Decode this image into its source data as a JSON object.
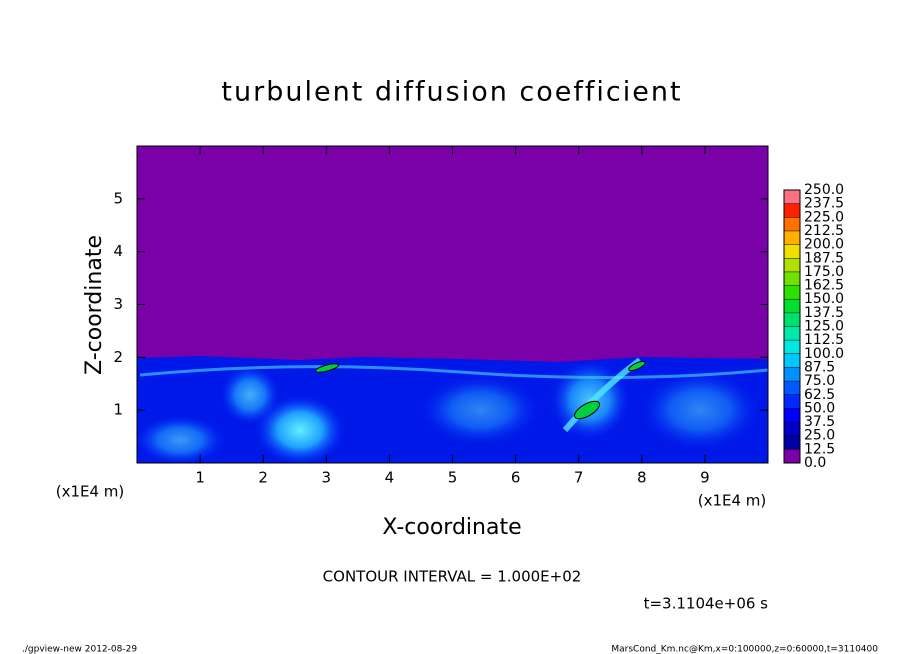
{
  "chart_data": {
    "type": "contour",
    "title": "turbulent diffusion coefficient",
    "x_label": "X-coordinate",
    "y_label": "Z-coordinate",
    "x_unit_label": "(x1E4 m)",
    "y_unit_label": "(x1E4 m)",
    "xlim": [
      0,
      10
    ],
    "xticks": [
      1,
      2,
      3,
      4,
      5,
      6,
      7,
      8,
      9
    ],
    "ylim": [
      0,
      6
    ],
    "yticks": [
      1,
      2,
      3,
      4,
      5
    ],
    "contour_interval": "CONTOUR INTERVAL = 1.000E+02",
    "time_label": "t=3.1104e+06 s",
    "footer_left": "./gpview-new  2012-08-29",
    "footer_right": "MarsCond_Km.nc@Km,x=0:100000,z=0:60000,t=3110400",
    "colorbar": {
      "ticks": [
        {
          "value": 0,
          "label": "0.0"
        },
        12.5,
        {
          "value": 25,
          "label": "25.0"
        },
        37.5,
        {
          "value": 50,
          "label": "50.0"
        },
        62.5,
        {
          "value": 75,
          "label": "75.0"
        },
        87.5,
        {
          "value": 100,
          "label": "100.0"
        },
        112.5,
        {
          "value": 125,
          "label": "125.0"
        },
        137.5,
        {
          "value": 150,
          "label": "150.0"
        },
        162.5,
        {
          "value": 175,
          "label": "175.0"
        },
        187.5,
        {
          "value": 200,
          "label": "200.0"
        },
        212.5,
        {
          "value": 225,
          "label": "225.0"
        },
        237.5,
        {
          "value": 250,
          "label": "250.0"
        }
      ],
      "colors": [
        "#7a00a8",
        "#0000a0",
        "#0000c8",
        "#0000ff",
        "#0028ff",
        "#0058ff",
        "#0090ff",
        "#00c8ff",
        "#00e8e0",
        "#00e8a8",
        "#00e070",
        "#00e030",
        "#30e000",
        "#70e000",
        "#b0e000",
        "#f0e000",
        "#ffb000",
        "#ff7000",
        "#ff2000",
        "#ff7080"
      ]
    }
  }
}
